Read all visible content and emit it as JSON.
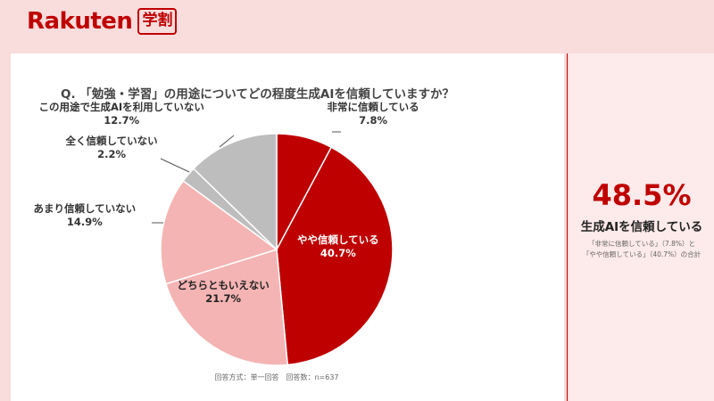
{
  "brand": {
    "logo_text": "Rakuten",
    "badge_text": "学割"
  },
  "question": "Q. 「勉強・学習」の用途についてどの程度生成AIを信頼していますか？",
  "note": "回答方式：単一回答　回答数：n=637",
  "summary": {
    "value": "48.5%",
    "label": "生成AIを信頼している",
    "note_line1": "「非常に信頼している」（7.8%）と",
    "note_line2": "「やや信頼している」（40.7%）の合計"
  },
  "chart_data": {
    "type": "pie",
    "title": "Q. 「勉強・学習」の用途についてどの程度生成AIを信頼していますか？",
    "slices": [
      {
        "label": "非常に信頼している",
        "value": 7.8,
        "value_label": "7.8%",
        "color": "#bf0000"
      },
      {
        "label": "やや信頼している",
        "value": 40.7,
        "value_label": "40.7%",
        "color": "#bf0000"
      },
      {
        "label": "どちらともいえない",
        "value": 21.7,
        "value_label": "21.7%",
        "color": "#f5b4b4"
      },
      {
        "label": "あまり信頼していない",
        "value": 14.9,
        "value_label": "14.9%",
        "color": "#f5b4b4"
      },
      {
        "label": "全く信頼していない",
        "value": 2.2,
        "value_label": "2.2%",
        "color": "#bdbdbd"
      },
      {
        "label": "この用途で生成AIを利用していない",
        "value": 12.7,
        "value_label": "12.7%",
        "color": "#bdbdbd"
      }
    ]
  }
}
